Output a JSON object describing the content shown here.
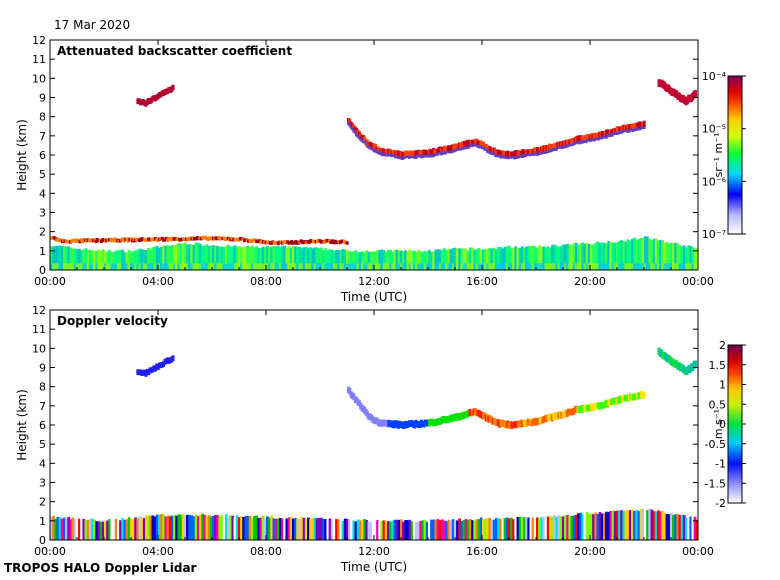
{
  "date": "17 Mar 2020",
  "footer": "TROPOS HALO Doppler Lidar",
  "chart_data": [
    {
      "type": "heatmap",
      "title": "Attenuated backscatter coefficient",
      "xlabel": "Time (UTC)",
      "ylabel": "Height (km)",
      "xticks": [
        "00:00",
        "04:00",
        "08:00",
        "12:00",
        "16:00",
        "20:00",
        "00:00"
      ],
      "yticks": [
        "0",
        "1",
        "2",
        "3",
        "4",
        "5",
        "6",
        "7",
        "8",
        "9",
        "10",
        "11",
        "12"
      ],
      "xlim": [
        0,
        24
      ],
      "ylim": [
        0,
        12
      ],
      "colorbar": {
        "unit": "sr⁻¹ m⁻¹",
        "scale": "log",
        "ticks": [
          "10⁻⁴",
          "10⁻⁵",
          "10⁻⁶",
          "10⁻⁷"
        ],
        "range": [
          1e-07,
          0.0001
        ]
      },
      "features": {
        "boundary_layer": [
          [
            0,
            1.3
          ],
          [
            1,
            1.1
          ],
          [
            2,
            1.0
          ],
          [
            3,
            1.0
          ],
          [
            4,
            1.2
          ],
          [
            5,
            1.4
          ],
          [
            6,
            1.3
          ],
          [
            7,
            1.2
          ],
          [
            8,
            1.2
          ],
          [
            9,
            1.2
          ],
          [
            10,
            1.1
          ],
          [
            11,
            1.0
          ],
          [
            12,
            1.0
          ],
          [
            13,
            1.0
          ],
          [
            14,
            1.0
          ],
          [
            15,
            1.1
          ],
          [
            16,
            1.1
          ],
          [
            17,
            1.2
          ],
          [
            18,
            1.2
          ],
          [
            19,
            1.3
          ],
          [
            20,
            1.4
          ],
          [
            21,
            1.5
          ],
          [
            22,
            1.7
          ],
          [
            23,
            1.4
          ],
          [
            24,
            1.1
          ]
        ],
        "low_cloud": [
          [
            0,
            1.7
          ],
          [
            0.4,
            1.5
          ],
          [
            5.8,
            1.65
          ],
          [
            7,
            1.6
          ],
          [
            8.3,
            1.4
          ],
          [
            9,
            1.45
          ],
          [
            10,
            1.5
          ],
          [
            11,
            1.45
          ]
        ],
        "upper_cloud": [
          [
            11,
            7.8
          ],
          [
            11.3,
            7.2
          ],
          [
            11.8,
            6.5
          ],
          [
            12.2,
            6.2
          ],
          [
            13,
            6.0
          ],
          [
            14,
            6.1
          ],
          [
            15,
            6.4
          ],
          [
            15.7,
            6.7
          ],
          [
            16.5,
            6.1
          ],
          [
            17,
            6.0
          ],
          [
            18,
            6.2
          ],
          [
            18.8,
            6.5
          ],
          [
            19.5,
            6.8
          ],
          [
            20.3,
            7.0
          ],
          [
            21,
            7.3
          ],
          [
            22,
            7.6
          ]
        ],
        "high_cloud": [
          [
            22.5,
            9.8
          ],
          [
            23,
            9.3
          ],
          [
            23.5,
            8.8
          ],
          [
            23.9,
            9.2
          ]
        ],
        "early_cloud": [
          [
            3.2,
            8.8
          ],
          [
            3.5,
            8.7
          ],
          [
            4.5,
            9.5
          ]
        ]
      }
    },
    {
      "type": "heatmap",
      "title": "Doppler velocity",
      "xlabel": "Time (UTC)",
      "ylabel": "Height (km)",
      "xticks": [
        "00:00",
        "04:00",
        "08:00",
        "12:00",
        "16:00",
        "20:00",
        "00:00"
      ],
      "yticks": [
        "0",
        "1",
        "2",
        "3",
        "4",
        "5",
        "6",
        "7",
        "8",
        "9",
        "10",
        "11",
        "12"
      ],
      "xlim": [
        0,
        24
      ],
      "ylim": [
        0,
        12
      ],
      "colorbar": {
        "unit": "m s⁻¹",
        "scale": "linear",
        "ticks": [
          "2",
          "1.5",
          "1",
          "0.5",
          "0",
          "-0.5",
          "-1",
          "-1.5",
          "-2"
        ],
        "range": [
          -2,
          2
        ]
      },
      "features": {
        "boundary_layer": [
          [
            0,
            1.2
          ],
          [
            2,
            1.0
          ],
          [
            4,
            1.3
          ],
          [
            6,
            1.3
          ],
          [
            8,
            1.2
          ],
          [
            10,
            1.1
          ],
          [
            12,
            1.0
          ],
          [
            14,
            1.0
          ],
          [
            16,
            1.1
          ],
          [
            18,
            1.2
          ],
          [
            20,
            1.4
          ],
          [
            22,
            1.6
          ],
          [
            24,
            1.1
          ]
        ],
        "upper_cloud": [
          [
            11,
            7.8
          ],
          [
            11.8,
            6.4
          ],
          [
            12.2,
            6.1
          ],
          [
            13,
            6.0
          ],
          [
            14,
            6.1
          ],
          [
            15,
            6.4
          ],
          [
            15.7,
            6.7
          ],
          [
            16.5,
            6.1
          ],
          [
            17,
            6.0
          ],
          [
            18,
            6.2
          ],
          [
            18.8,
            6.5
          ],
          [
            19.5,
            6.8
          ],
          [
            20.3,
            7.0
          ],
          [
            21,
            7.3
          ],
          [
            22,
            7.6
          ]
        ],
        "high_cloud": [
          [
            22.5,
            9.8
          ],
          [
            23,
            9.3
          ],
          [
            23.5,
            8.8
          ],
          [
            23.9,
            9.2
          ]
        ],
        "early_cloud": [
          [
            3.2,
            8.8
          ],
          [
            3.5,
            8.7
          ],
          [
            4.5,
            9.5
          ]
        ]
      }
    }
  ]
}
